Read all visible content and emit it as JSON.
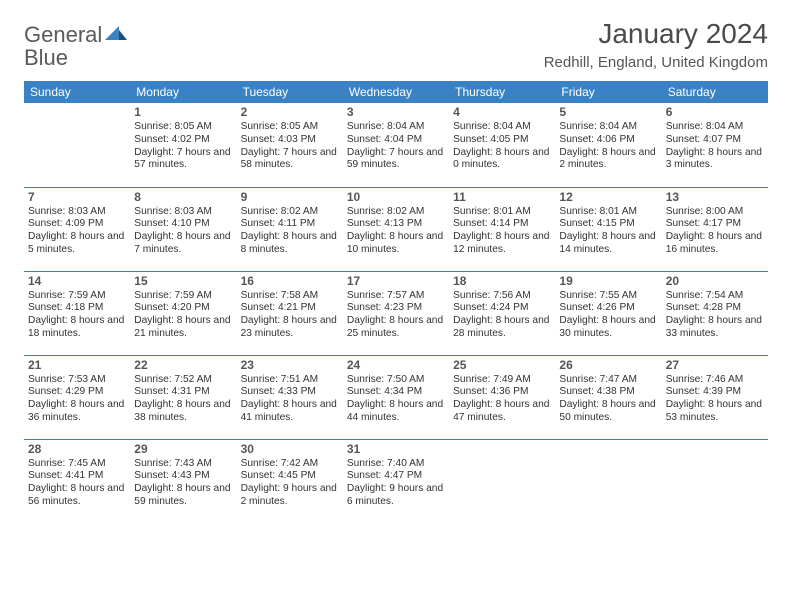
{
  "logo": {
    "text1": "General",
    "text2": "Blue"
  },
  "title": "January 2024",
  "location": "Redhill, England, United Kingdom",
  "header_bg": "#3b82c4",
  "header_fg": "#ffffff",
  "rule_color": "#3b82c4",
  "weekday_labels": [
    "Sunday",
    "Monday",
    "Tuesday",
    "Wednesday",
    "Thursday",
    "Friday",
    "Saturday"
  ],
  "start_weekday_index": 1,
  "days": [
    {
      "n": 1,
      "sunrise": "8:05 AM",
      "sunset": "4:02 PM",
      "day_h": 7,
      "day_m": 57
    },
    {
      "n": 2,
      "sunrise": "8:05 AM",
      "sunset": "4:03 PM",
      "day_h": 7,
      "day_m": 58
    },
    {
      "n": 3,
      "sunrise": "8:04 AM",
      "sunset": "4:04 PM",
      "day_h": 7,
      "day_m": 59
    },
    {
      "n": 4,
      "sunrise": "8:04 AM",
      "sunset": "4:05 PM",
      "day_h": 8,
      "day_m": 0
    },
    {
      "n": 5,
      "sunrise": "8:04 AM",
      "sunset": "4:06 PM",
      "day_h": 8,
      "day_m": 2
    },
    {
      "n": 6,
      "sunrise": "8:04 AM",
      "sunset": "4:07 PM",
      "day_h": 8,
      "day_m": 3
    },
    {
      "n": 7,
      "sunrise": "8:03 AM",
      "sunset": "4:09 PM",
      "day_h": 8,
      "day_m": 5
    },
    {
      "n": 8,
      "sunrise": "8:03 AM",
      "sunset": "4:10 PM",
      "day_h": 8,
      "day_m": 7
    },
    {
      "n": 9,
      "sunrise": "8:02 AM",
      "sunset": "4:11 PM",
      "day_h": 8,
      "day_m": 8
    },
    {
      "n": 10,
      "sunrise": "8:02 AM",
      "sunset": "4:13 PM",
      "day_h": 8,
      "day_m": 10
    },
    {
      "n": 11,
      "sunrise": "8:01 AM",
      "sunset": "4:14 PM",
      "day_h": 8,
      "day_m": 12
    },
    {
      "n": 12,
      "sunrise": "8:01 AM",
      "sunset": "4:15 PM",
      "day_h": 8,
      "day_m": 14
    },
    {
      "n": 13,
      "sunrise": "8:00 AM",
      "sunset": "4:17 PM",
      "day_h": 8,
      "day_m": 16
    },
    {
      "n": 14,
      "sunrise": "7:59 AM",
      "sunset": "4:18 PM",
      "day_h": 8,
      "day_m": 18
    },
    {
      "n": 15,
      "sunrise": "7:59 AM",
      "sunset": "4:20 PM",
      "day_h": 8,
      "day_m": 21
    },
    {
      "n": 16,
      "sunrise": "7:58 AM",
      "sunset": "4:21 PM",
      "day_h": 8,
      "day_m": 23
    },
    {
      "n": 17,
      "sunrise": "7:57 AM",
      "sunset": "4:23 PM",
      "day_h": 8,
      "day_m": 25
    },
    {
      "n": 18,
      "sunrise": "7:56 AM",
      "sunset": "4:24 PM",
      "day_h": 8,
      "day_m": 28
    },
    {
      "n": 19,
      "sunrise": "7:55 AM",
      "sunset": "4:26 PM",
      "day_h": 8,
      "day_m": 30
    },
    {
      "n": 20,
      "sunrise": "7:54 AM",
      "sunset": "4:28 PM",
      "day_h": 8,
      "day_m": 33
    },
    {
      "n": 21,
      "sunrise": "7:53 AM",
      "sunset": "4:29 PM",
      "day_h": 8,
      "day_m": 36
    },
    {
      "n": 22,
      "sunrise": "7:52 AM",
      "sunset": "4:31 PM",
      "day_h": 8,
      "day_m": 38
    },
    {
      "n": 23,
      "sunrise": "7:51 AM",
      "sunset": "4:33 PM",
      "day_h": 8,
      "day_m": 41
    },
    {
      "n": 24,
      "sunrise": "7:50 AM",
      "sunset": "4:34 PM",
      "day_h": 8,
      "day_m": 44
    },
    {
      "n": 25,
      "sunrise": "7:49 AM",
      "sunset": "4:36 PM",
      "day_h": 8,
      "day_m": 47
    },
    {
      "n": 26,
      "sunrise": "7:47 AM",
      "sunset": "4:38 PM",
      "day_h": 8,
      "day_m": 50
    },
    {
      "n": 27,
      "sunrise": "7:46 AM",
      "sunset": "4:39 PM",
      "day_h": 8,
      "day_m": 53
    },
    {
      "n": 28,
      "sunrise": "7:45 AM",
      "sunset": "4:41 PM",
      "day_h": 8,
      "day_m": 56
    },
    {
      "n": 29,
      "sunrise": "7:43 AM",
      "sunset": "4:43 PM",
      "day_h": 8,
      "day_m": 59
    },
    {
      "n": 30,
      "sunrise": "7:42 AM",
      "sunset": "4:45 PM",
      "day_h": 9,
      "day_m": 2
    },
    {
      "n": 31,
      "sunrise": "7:40 AM",
      "sunset": "4:47 PM",
      "day_h": 9,
      "day_m": 6
    }
  ],
  "labels": {
    "sunrise": "Sunrise:",
    "sunset": "Sunset:",
    "daylight": "Daylight:",
    "hours": "hours",
    "and": "and",
    "minutes": "minutes."
  }
}
